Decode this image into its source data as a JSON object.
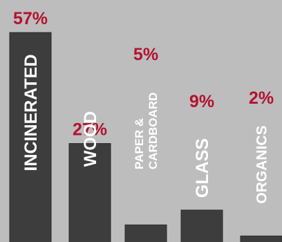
{
  "chart_data": {
    "type": "bar",
    "categories": [
      "INCINERATED",
      "WOOD",
      "PAPER & CARDBOARD",
      "GLASS",
      "ORGANICS"
    ],
    "values": [
      57,
      27,
      5,
      9,
      2
    ],
    "value_labels": [
      "57%",
      "27%",
      "5%",
      "9%",
      "2%"
    ],
    "title": "",
    "xlabel": "",
    "ylabel": "",
    "grid": false,
    "colors": {
      "background": "#bdbdbd",
      "bar": "#3d3d3d",
      "value_label": "#b3122e",
      "category_label": "#ffffff"
    }
  }
}
